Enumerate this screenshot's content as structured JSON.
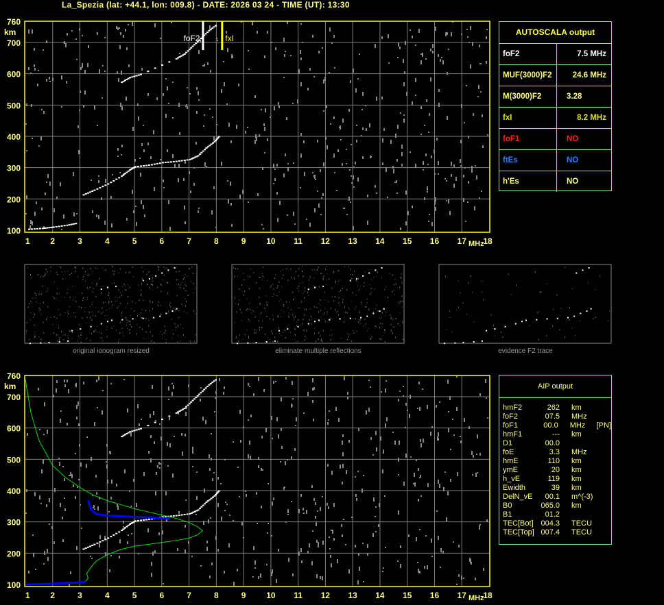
{
  "title": "La_Spezia (lat: +44.1, lon: 009.8) - DATE: 2026 03 24 - TIME (UT): 13:30",
  "colors": {
    "axis_text": "#ffff80",
    "frame": "#ffff00",
    "grid": "#808080",
    "panel_border": "#7ff07f",
    "trace": "#ffffff",
    "profile": "#00e000",
    "aip_trace": "#0000ff",
    "foF1": "#ff2020",
    "ftEs": "#2080ff"
  },
  "axes": {
    "y_ticks": [
      "760",
      "700",
      "600",
      "500",
      "400",
      "300",
      "200",
      "100"
    ],
    "y_unit": "km",
    "x_ticks": [
      "1",
      "2",
      "3",
      "4",
      "5",
      "6",
      "7",
      "8",
      "9",
      "10",
      "11",
      "12",
      "13",
      "14",
      "15",
      "16",
      "17",
      "18"
    ],
    "x_unit": "MHz"
  },
  "markers": {
    "foF2_label": "foF2",
    "fxI_label": "fxI",
    "foF2_value": 7.5,
    "fxI_value": 8.2
  },
  "autoscala": {
    "header": "AUTOSCALA output",
    "rows": [
      {
        "key": "foF2",
        "value": "7.5 MHz",
        "color": "#ffffff"
      },
      {
        "key": "MUF(3000)F2",
        "value": "24.6 MHz",
        "color": "#ffff80"
      },
      {
        "key": "M(3000)F2",
        "value": "3.28",
        "color": "#ffff80"
      },
      {
        "key": "fxI",
        "value": "8.2 MHz",
        "color": "#e0e020"
      },
      {
        "key": "foF1",
        "value": "NO",
        "color": "#ff2020"
      },
      {
        "key": "ftEs",
        "value": "NO",
        "color": "#2080ff"
      },
      {
        "key": "h'Es",
        "value": "NO",
        "color": "#ffff80"
      }
    ]
  },
  "thumbnails": [
    {
      "caption": "original ionogram resized"
    },
    {
      "caption": "eliminate multiple reflections"
    },
    {
      "caption": "evidence F2 trace"
    }
  ],
  "aip": {
    "header": "AIP output",
    "rows": [
      [
        "hmF2",
        "262",
        "km",
        ""
      ],
      [
        "foF2",
        "07.5",
        "MHz",
        ""
      ],
      [
        "foF1",
        "00.0",
        "MHz",
        "[PN]"
      ],
      [
        "hmF1",
        "---",
        "km",
        ""
      ],
      [
        "D1",
        "00.0",
        "",
        ""
      ],
      [
        "foE",
        "3.3",
        "MHz",
        ""
      ],
      [
        "hmE",
        "110",
        "km",
        ""
      ],
      [
        "ymE",
        "20",
        "km",
        ""
      ],
      [
        "h_vE",
        "119",
        "km",
        ""
      ],
      [
        "Ewidth",
        "39",
        "km",
        ""
      ],
      [
        "DelN_vE",
        "00.1",
        "m^(-3)",
        ""
      ],
      [
        "B0",
        "065.0",
        "km",
        ""
      ],
      [
        "B1",
        "01.2",
        "",
        ""
      ],
      [
        "TEC[Bot]",
        "004.3",
        "TECU",
        ""
      ],
      [
        "TEC[Top]",
        "007.4",
        "TECU",
        ""
      ]
    ]
  },
  "chart_data": [
    {
      "type": "scatter",
      "xlabel": "MHz",
      "ylabel": "km",
      "xlim": [
        1,
        18
      ],
      "ylim": [
        100,
        760
      ],
      "grid": true,
      "series": [
        {
          "points": [
            [
              3.1,
              215
            ],
            [
              3.5,
              230
            ],
            [
              4,
              250
            ],
            [
              4.5,
              275
            ],
            [
              4.8,
              295
            ],
            [
              5,
              305
            ],
            [
              5.5,
              310
            ],
            [
              6,
              318
            ],
            [
              6.5,
              322
            ],
            [
              7,
              328
            ],
            [
              7.3,
              340
            ],
            [
              7.6,
              365
            ],
            [
              7.9,
              385
            ],
            [
              8.1,
              405
            ]
          ]
        },
        {
          "points": [
            [
              4.5,
              575
            ],
            [
              4.8,
              590
            ],
            [
              5.2,
              600
            ],
            [
              6.5,
              650
            ],
            [
              6.8,
              665
            ],
            [
              7.1,
              690
            ],
            [
              7.4,
              715
            ],
            [
              7.7,
              740
            ],
            [
              8,
              760
            ]
          ]
        },
        {
          "points": [
            [
              1.1,
              105
            ],
            [
              1.6,
              108
            ],
            [
              2,
              112
            ],
            [
              2.5,
              118
            ],
            [
              2.9,
              125
            ]
          ]
        }
      ]
    },
    {
      "type": "line",
      "xlabel": "MHz",
      "ylabel": "km",
      "xlim": [
        1,
        18
      ],
      "ylim": [
        100,
        760
      ],
      "grid": true,
      "series": [
        {
          "points": [
            [
              3.1,
              215
            ],
            [
              3.5,
              230
            ],
            [
              4,
              250
            ],
            [
              4.5,
              275
            ],
            [
              4.8,
              295
            ],
            [
              5,
              305
            ],
            [
              5.5,
              310
            ],
            [
              6,
              318
            ],
            [
              6.5,
              322
            ],
            [
              7,
              328
            ],
            [
              7.3,
              340
            ],
            [
              7.6,
              365
            ],
            [
              7.9,
              385
            ],
            [
              8.1,
              405
            ]
          ]
        },
        {
          "points": [
            [
              4.5,
              575
            ],
            [
              4.8,
              590
            ],
            [
              5.2,
              600
            ],
            [
              6.5,
              650
            ],
            [
              6.8,
              665
            ],
            [
              7.1,
              690
            ],
            [
              7.4,
              715
            ],
            [
              7.7,
              740
            ],
            [
              8,
              760
            ]
          ]
        },
        {
          "points": [
            [
              1,
              755
            ],
            [
              1.2,
              650
            ],
            [
              1.5,
              560
            ],
            [
              2,
              480
            ],
            [
              2.5,
              440
            ],
            [
              3,
              410
            ],
            [
              3.5,
              385
            ],
            [
              4,
              368
            ],
            [
              4.5,
              355
            ],
            [
              5,
              342
            ],
            [
              5.5,
              332
            ],
            [
              6,
              322
            ],
            [
              6.5,
              312
            ],
            [
              7,
              298
            ],
            [
              7.3,
              285
            ],
            [
              7.5,
              272
            ],
            [
              7.3,
              258
            ],
            [
              7,
              248
            ],
            [
              6.5,
              240
            ],
            [
              6,
              234
            ],
            [
              5.5,
              228
            ],
            [
              5,
              222
            ],
            [
              4.5,
              212
            ],
            [
              4,
              195
            ],
            [
              3.6,
              175
            ],
            [
              3.4,
              155
            ],
            [
              3.25,
              135
            ],
            [
              3.3,
              120
            ],
            [
              3.2,
              110
            ],
            [
              2.5,
              104
            ],
            [
              1.5,
              101
            ],
            [
              1,
              100
            ]
          ]
        },
        {
          "points": [
            [
              3.3,
              370
            ],
            [
              3.4,
              340
            ],
            [
              3.6,
              325
            ],
            [
              4,
              320
            ],
            [
              4.5,
              318
            ],
            [
              5,
              316
            ],
            [
              5.5,
              314
            ],
            [
              6,
              312
            ],
            [
              6.3,
              310
            ]
          ]
        },
        {
          "points": [
            [
              1,
              100
            ],
            [
              1.5,
              101
            ],
            [
              2,
              102
            ],
            [
              2.5,
              104
            ],
            [
              2.9,
              106
            ],
            [
              3.2,
              108
            ]
          ]
        }
      ]
    }
  ]
}
